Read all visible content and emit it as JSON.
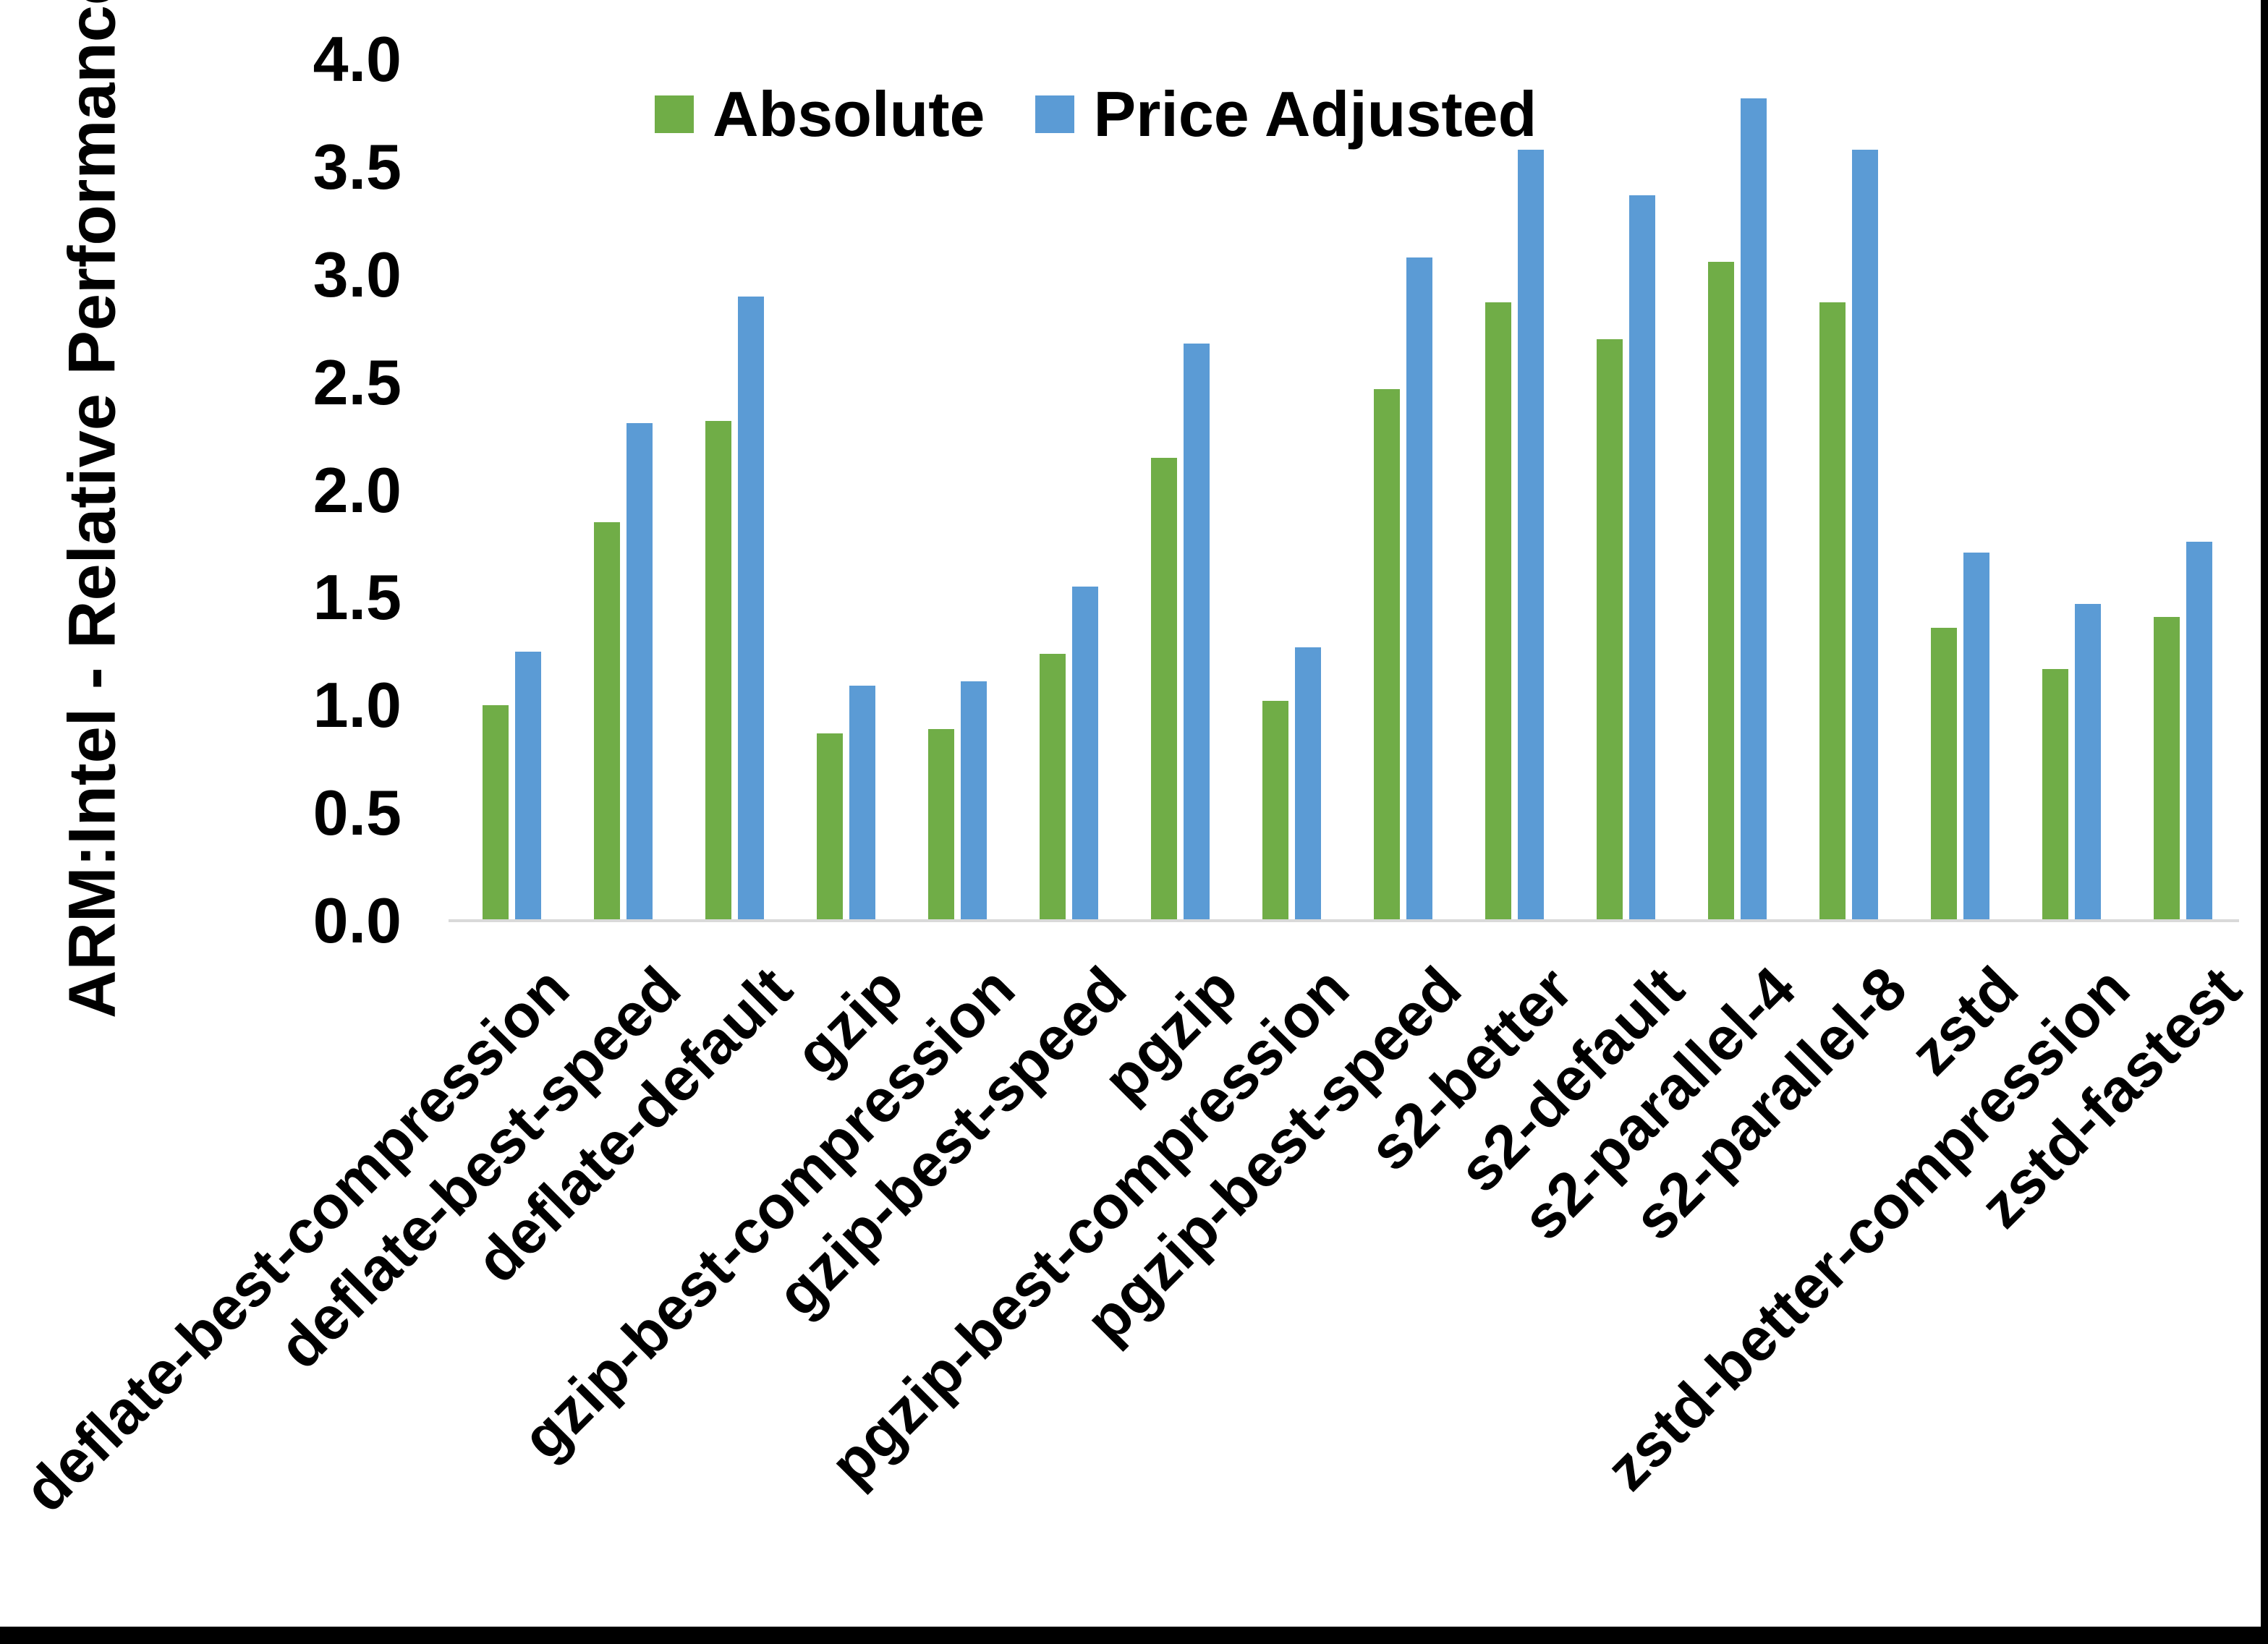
{
  "chart_data": {
    "type": "bar",
    "title": "",
    "ylabel": "ARM:Intel - Relative Performance",
    "xlabel": "",
    "ylim": [
      0.0,
      4.0
    ],
    "ytick_step": 0.5,
    "ytick_decimals": 1,
    "grid": false,
    "legend_position": "top",
    "x_label_rotation_deg": 45,
    "categories": [
      "deflate-best-compression",
      "deflate-best-speed",
      "deflate-default",
      "gzip",
      "gzip-best-compression",
      "gzip-best-speed",
      "pgzip",
      "pgzip-best-compression",
      "pgzip-best-speed",
      "s2-better",
      "s2-default",
      "s2-parallel-4",
      "s2-parallel-8",
      "zstd",
      "zstd-better-compression",
      "zstd-fastest"
    ],
    "series": [
      {
        "name": "Absolute",
        "color": "#70AD47",
        "values": [
          1.0,
          1.85,
          2.32,
          0.87,
          0.89,
          1.24,
          2.15,
          1.02,
          2.47,
          2.87,
          2.7,
          3.06,
          2.87,
          1.36,
          1.17,
          1.41
        ]
      },
      {
        "name": "Price Adjusted",
        "color": "#5B9BD5",
        "values": [
          1.25,
          2.31,
          2.9,
          1.09,
          1.11,
          1.55,
          2.68,
          1.27,
          3.08,
          3.58,
          3.37,
          3.82,
          3.58,
          1.71,
          1.47,
          1.76
        ]
      }
    ],
    "axis_line_color": "#d9d9d9"
  },
  "legend": {
    "absolute_label": "Absolute",
    "price_adjusted_label": "Price Adjusted"
  },
  "y_axis": {
    "title": "ARM:Intel - Relative Performance"
  }
}
